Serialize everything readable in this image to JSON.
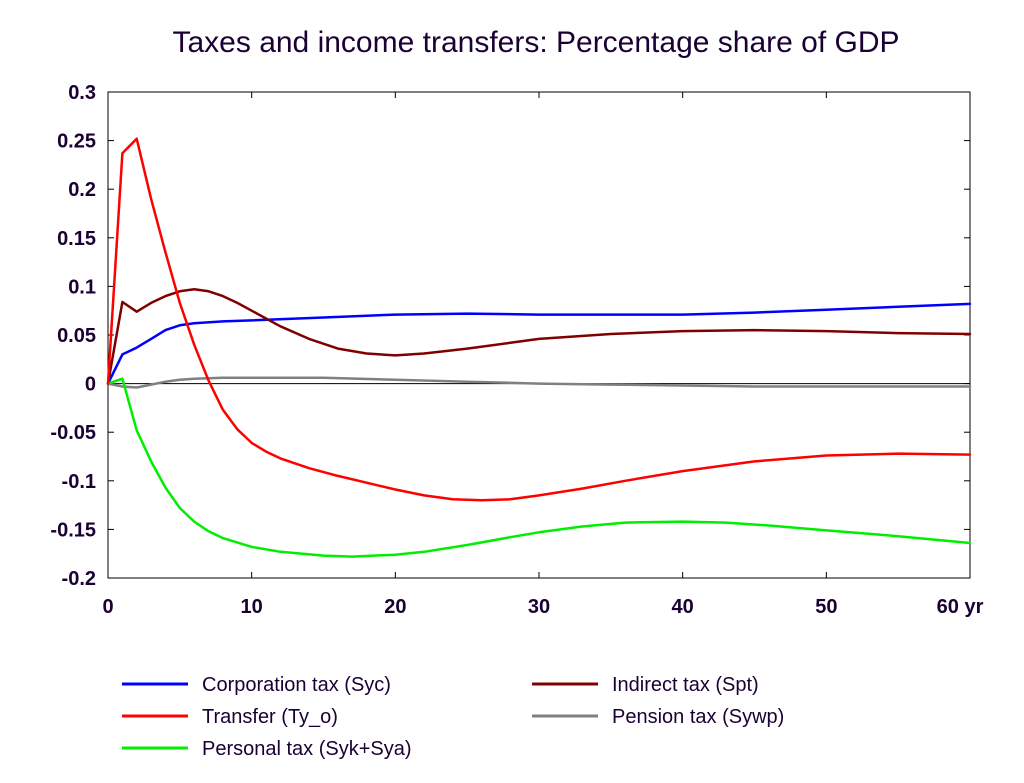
{
  "chart_data": {
    "type": "line",
    "title": "Taxes and income transfers: Percentage share of GDP",
    "xlabel": "",
    "ylabel": "",
    "xlim": [
      0,
      60
    ],
    "ylim": [
      -0.2,
      0.3
    ],
    "x_ticks": [
      0,
      10,
      20,
      30,
      40,
      50,
      60
    ],
    "x_tick_labels": [
      "0",
      "10",
      "20",
      "30",
      "40",
      "50",
      "60 yr"
    ],
    "y_ticks": [
      0.3,
      0.25,
      0.2,
      0.15,
      0.1,
      0.05,
      0,
      -0.05,
      -0.1,
      -0.15,
      -0.2
    ],
    "y_tick_labels": [
      "0.3",
      "0.25",
      "0.2",
      "0.15",
      "0.1",
      "0.05",
      "0",
      "-0.05",
      "-0.1",
      "-0.15",
      "-0.2"
    ],
    "grid": false,
    "legend_position": "bottom",
    "series": [
      {
        "name": "Corporation tax (Syc)",
        "color": "#0000ff",
        "x": [
          0,
          1,
          2,
          3,
          4,
          5,
          6,
          8,
          10,
          15,
          20,
          25,
          30,
          35,
          40,
          45,
          50,
          55,
          60
        ],
        "y": [
          0,
          0.03,
          0.037,
          0.046,
          0.055,
          0.06,
          0.062,
          0.064,
          0.065,
          0.068,
          0.071,
          0.072,
          0.071,
          0.071,
          0.071,
          0.073,
          0.076,
          0.079,
          0.082
        ]
      },
      {
        "name": "Transfer (Ty_o)",
        "color": "#ff0000",
        "x": [
          0,
          1,
          2,
          3,
          4,
          5,
          6,
          7,
          8,
          9,
          10,
          11,
          12,
          14,
          16,
          18,
          20,
          22,
          24,
          26,
          28,
          30,
          33,
          36,
          40,
          45,
          50,
          55,
          60
        ],
        "y": [
          0,
          0.237,
          0.252,
          0.19,
          0.135,
          0.083,
          0.04,
          0.003,
          -0.027,
          -0.047,
          -0.061,
          -0.07,
          -0.077,
          -0.087,
          -0.095,
          -0.102,
          -0.109,
          -0.115,
          -0.119,
          -0.12,
          -0.119,
          -0.115,
          -0.108,
          -0.1,
          -0.09,
          -0.08,
          -0.074,
          -0.072,
          -0.073
        ]
      },
      {
        "name": "Personal tax (Syk+Sya)",
        "color": "#00ee00",
        "x": [
          0,
          1,
          2,
          3,
          4,
          5,
          6,
          7,
          8,
          10,
          12,
          15,
          17,
          20,
          22,
          25,
          28,
          30,
          33,
          36,
          40,
          43,
          46,
          50,
          55,
          60
        ],
        "y": [
          0,
          0.005,
          -0.048,
          -0.08,
          -0.107,
          -0.128,
          -0.142,
          -0.152,
          -0.159,
          -0.168,
          -0.173,
          -0.177,
          -0.178,
          -0.176,
          -0.173,
          -0.166,
          -0.158,
          -0.153,
          -0.147,
          -0.143,
          -0.142,
          -0.143,
          -0.146,
          -0.151,
          -0.157,
          -0.164
        ]
      },
      {
        "name": "Indirect tax (Spt)",
        "color": "#800000",
        "x": [
          0,
          1,
          2,
          3,
          4,
          5,
          6,
          7,
          8,
          9,
          10,
          12,
          14,
          16,
          18,
          20,
          22,
          25,
          28,
          30,
          35,
          40,
          45,
          50,
          55,
          60
        ],
        "y": [
          0,
          0.084,
          0.074,
          0.083,
          0.09,
          0.095,
          0.097,
          0.095,
          0.09,
          0.083,
          0.075,
          0.059,
          0.046,
          0.036,
          0.031,
          0.029,
          0.031,
          0.036,
          0.042,
          0.046,
          0.051,
          0.054,
          0.055,
          0.054,
          0.052,
          0.051
        ]
      },
      {
        "name": "Pension tax (Sywp)",
        "color": "#808080",
        "x": [
          0,
          1,
          2,
          3,
          4,
          5,
          6,
          8,
          10,
          15,
          20,
          25,
          30,
          35,
          40,
          45,
          50,
          55,
          60
        ],
        "y": [
          0,
          -0.003,
          -0.004,
          -0.001,
          0.002,
          0.004,
          0.005,
          0.006,
          0.006,
          0.006,
          0.004,
          0.002,
          0.0,
          -0.001,
          -0.002,
          -0.003,
          -0.003,
          -0.003,
          -0.003
        ]
      }
    ],
    "legend_order": [
      [
        "Corporation tax (Syc)",
        "Indirect tax (Spt)"
      ],
      [
        "Transfer (Ty_o)",
        "Pension tax (Sywp)"
      ],
      [
        "Personal tax (Syk+Sya)"
      ]
    ]
  }
}
